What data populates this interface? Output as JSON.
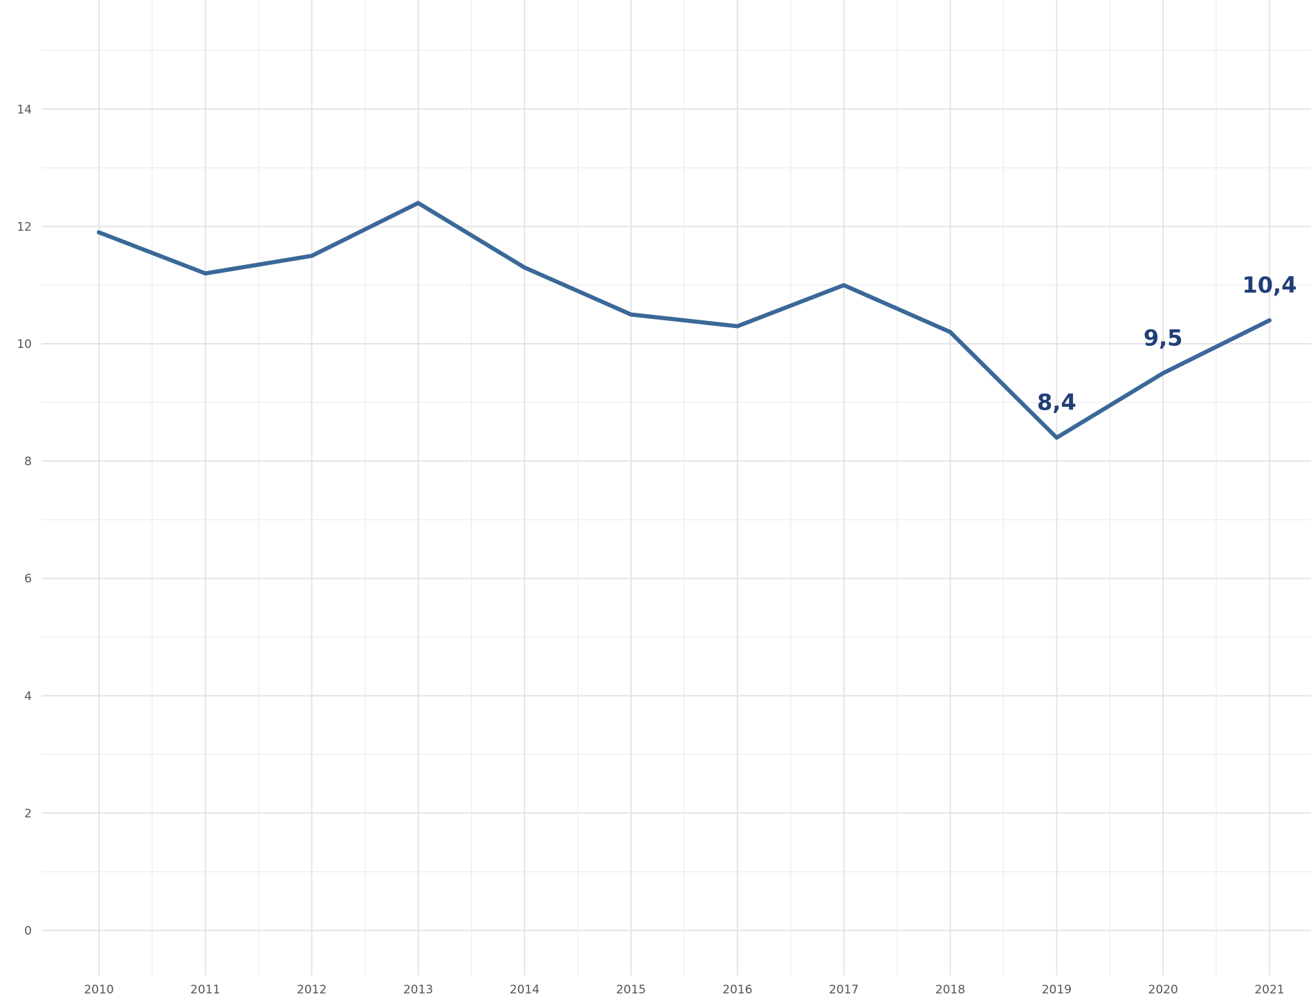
{
  "chart_data": {
    "type": "line",
    "title": "",
    "xlabel": "",
    "ylabel": "",
    "x": [
      "2010",
      "2011",
      "2012",
      "2013",
      "2014",
      "2015",
      "2016",
      "2017",
      "2018",
      "2019",
      "2020",
      "2021"
    ],
    "series": [
      {
        "values": [
          11.9,
          11.2,
          11.5,
          12.4,
          11.3,
          10.5,
          10.3,
          11.0,
          10.2,
          8.4,
          9.5,
          10.4
        ]
      }
    ],
    "ylim": [
      -0.6,
      15.4
    ],
    "y_ticks": [
      "0",
      "2",
      "4",
      "6",
      "8",
      "10",
      "12",
      "14"
    ],
    "data_labels": [
      {
        "x": "2019",
        "text": "8,4"
      },
      {
        "x": "2020",
        "text": "9,5"
      },
      {
        "x": "2021",
        "text": "10,4"
      }
    ],
    "grid": true,
    "legend": "none",
    "colors": {
      "line": "#3a6898",
      "label": "#1f3f78",
      "major_grid": "#e4e4e8",
      "minor_grid": "#efeff2",
      "tick_text": "#555555"
    }
  }
}
